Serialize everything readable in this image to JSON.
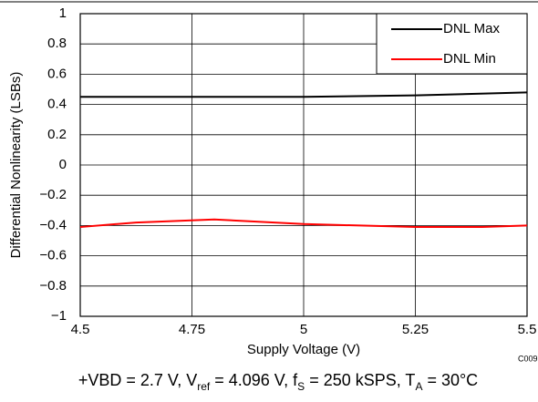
{
  "chart_data": {
    "type": "line",
    "xlabel": "Supply Voltage (V)",
    "ylabel": "Differential Nonlinearity (LSBs)",
    "note": "C009",
    "caption": [
      "+VBD = 2.7 V, V",
      "ref",
      " = 4.096 V, f",
      "S",
      " = 250 kSPS, T",
      "A",
      " = 30°C"
    ],
    "xlim": [
      4.5,
      5.5
    ],
    "xticks": [
      4.5,
      4.75,
      5,
      5.25,
      5.5
    ],
    "ylim": [
      -1,
      1
    ],
    "yticks": [
      {
        "value": -1,
        "label": "−1"
      },
      {
        "value": -0.8,
        "label": "−0.8"
      },
      {
        "value": -0.6,
        "label": "−0.6"
      },
      {
        "value": -0.4,
        "label": "−0.4"
      },
      {
        "value": -0.2,
        "label": "−0.2"
      },
      0,
      0.2,
      0.4,
      0.6,
      0.8,
      1
    ],
    "grid": true,
    "legend": "upper right",
    "series": [
      {
        "name": "DNL Max",
        "color": "#000000",
        "x": [
          4.5,
          4.75,
          5,
          5.25,
          5.5
        ],
        "values": [
          0.45,
          0.45,
          0.45,
          0.46,
          0.48
        ]
      },
      {
        "name": "DNL Min",
        "color": "#ff0000",
        "x": [
          4.5,
          4.625,
          4.8,
          5,
          5.25,
          5.4,
          5.5
        ],
        "values": [
          -0.41,
          -0.38,
          -0.36,
          -0.39,
          -0.41,
          -0.41,
          -0.4
        ]
      }
    ]
  }
}
